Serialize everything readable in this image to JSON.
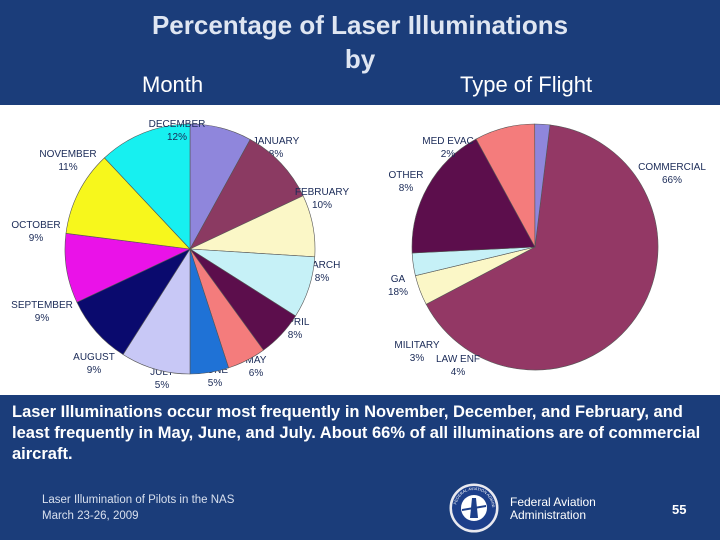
{
  "slide": {
    "title_line1": "Percentage of Laser Illuminations",
    "title_line2": "by",
    "left_subtitle": "Month",
    "right_subtitle": "Type of Flight",
    "caption": "Laser Illuminations occur most frequently in November, December, and February, and least frequently in May, June, and July.  About 66% of all illuminations are of commercial aircraft.",
    "footer_line1": "Laser Illumination of Pilots in the NAS",
    "footer_line2": "March 23-26, 2009",
    "agency_line1": "Federal Aviation",
    "agency_line2": "Administration",
    "page_number": "55",
    "seal_text": "FEDERAL AVIATION ADMINISTRATION"
  },
  "chart_data": [
    {
      "type": "pie",
      "title": "Month",
      "slices": [
        {
          "name": "JANUARY",
          "value": 8,
          "pct_label": "8%",
          "color": "#8f86dc"
        },
        {
          "name": "FEBRUARY",
          "value": 10,
          "pct_label": "10%",
          "color": "#8b3a62"
        },
        {
          "name": "MARCH",
          "value": 8,
          "pct_label": "8%",
          "color": "#fbf7c7"
        },
        {
          "name": "APRIL",
          "value": 8,
          "pct_label": "8%",
          "color": "#c6f1f7"
        },
        {
          "name": "MAY",
          "value": 6,
          "pct_label": "6%",
          "color": "#5c0e4c"
        },
        {
          "name": "JUNE",
          "value": 5,
          "pct_label": "5%",
          "color": "#f47c7c"
        },
        {
          "name": "JULY",
          "value": 5,
          "pct_label": "5%",
          "color": "#1f72d6"
        },
        {
          "name": "AUGUST",
          "value": 9,
          "pct_label": "9%",
          "color": "#c8c8f6"
        },
        {
          "name": "SEPTEMBER",
          "value": 9,
          "pct_label": "9%",
          "color": "#0a0a6e"
        },
        {
          "name": "OCTOBER",
          "value": 9,
          "pct_label": "9%",
          "color": "#ea12e8"
        },
        {
          "name": "NOVEMBER",
          "value": 11,
          "pct_label": "11%",
          "color": "#f7f71c"
        },
        {
          "name": "DECEMBER",
          "value": 12,
          "pct_label": "12%",
          "color": "#17f0f0"
        }
      ]
    },
    {
      "type": "pie",
      "title": "Type of Flight",
      "slices": [
        {
          "name": "COMMERCIAL",
          "value": 66,
          "pct_label": "66%",
          "color": "#933865"
        },
        {
          "name": "LAW ENF",
          "value": 4,
          "pct_label": "4%",
          "color": "#fbf7c7"
        },
        {
          "name": "MILITARY",
          "value": 3,
          "pct_label": "3%",
          "color": "#c6f1f7"
        },
        {
          "name": "GA",
          "value": 18,
          "pct_label": "18%",
          "color": "#5c0e4c"
        },
        {
          "name": "OTHER",
          "value": 8,
          "pct_label": "8%",
          "color": "#f47c7c"
        },
        {
          "name": "MED EVAC",
          "value": 2,
          "pct_label": "2%",
          "color": "#8f86dc"
        }
      ]
    }
  ]
}
